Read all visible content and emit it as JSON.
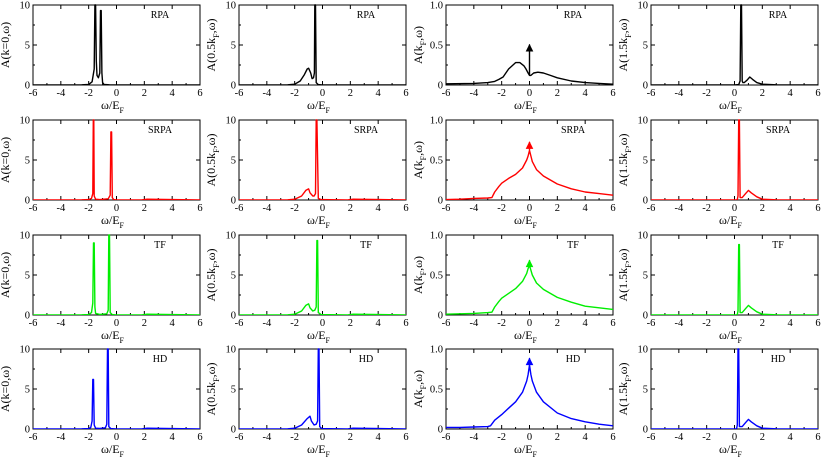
{
  "colors": {
    "RPA": "#000000",
    "SRPA": "#ff0000",
    "TF": "#00ee00",
    "HD": "#0000ff"
  },
  "chart_data": {
    "type": "line",
    "layout": "4x4 grid of panels (rows = methods, columns = momenta)",
    "x_axis": {
      "label": {
        "main": "ω/E",
        "sub": "F"
      },
      "ticks": [
        "-6",
        "-4",
        "-2",
        "0",
        "2",
        "4",
        "6"
      ],
      "xlim": [
        -6,
        6
      ]
    },
    "rows": [
      {
        "method": "RPA",
        "color": "#000000"
      },
      {
        "method": "SRPA",
        "color": "#ff0000"
      },
      {
        "method": "TF",
        "color": "#00ee00"
      },
      {
        "method": "HD",
        "color": "#0000ff"
      }
    ],
    "columns": [
      {
        "ylabel": {
          "pre": "A(k=0,ω)",
          "sub": "",
          "post": ""
        },
        "ylim": [
          0,
          10
        ],
        "yticks": [
          "0",
          "5",
          "10"
        ]
      },
      {
        "ylabel": {
          "pre": "A(0.5k",
          "sub": "F",
          "post": ",ω)"
        },
        "ylim": [
          0,
          10
        ],
        "yticks": [
          "0",
          "5",
          "10"
        ]
      },
      {
        "ylabel": {
          "pre": "A(k",
          "sub": "F",
          "post": ",ω)"
        },
        "ylim": [
          0,
          1.0
        ],
        "yticks": [
          "0",
          "0.5",
          "1.0"
        ]
      },
      {
        "ylabel": {
          "pre": "A(1.5k",
          "sub": "F",
          "post": ",ω)"
        },
        "ylim": [
          0,
          10
        ],
        "yticks": [
          "0",
          "5",
          "10"
        ]
      }
    ],
    "panels": [
      {
        "row": "RPA",
        "col": 0,
        "x": [
          -6,
          -2.5,
          -2.0,
          -1.75,
          -1.6,
          -1.55,
          -1.5,
          -1.45,
          -1.4,
          -1.3,
          -1.2,
          -1.15,
          -1.1,
          -1.05,
          -1.0,
          -0.9,
          -0.5,
          0,
          6
        ],
        "y": [
          0,
          0.02,
          0.08,
          0.4,
          2.0,
          10,
          10,
          3,
          1.2,
          0.9,
          1.5,
          9.3,
          9.3,
          1.5,
          0.3,
          0.08,
          0.02,
          0,
          0
        ]
      },
      {
        "row": "RPA",
        "col": 1,
        "x": [
          -6,
          -2.5,
          -2.0,
          -1.6,
          -1.3,
          -1.1,
          -1.0,
          -0.85,
          -0.75,
          -0.65,
          -0.58,
          -0.55,
          -0.5,
          -0.45,
          -0.3,
          0,
          2,
          6
        ],
        "y": [
          0,
          0.02,
          0.1,
          0.5,
          1.3,
          2.0,
          2.1,
          1.5,
          0.8,
          0.9,
          1.5,
          10,
          10,
          0.3,
          0.05,
          0,
          0,
          0
        ]
      },
      {
        "row": "RPA",
        "col": 2,
        "x": [
          -6,
          -4,
          -3,
          -2.5,
          -2.2,
          -1.9,
          -1.5,
          -1.0,
          -0.7,
          -0.4,
          -0.25,
          -0.1,
          0,
          0,
          0,
          0.1,
          0.3,
          0.6,
          1.0,
          1.5,
          2,
          3,
          4,
          5,
          6
        ],
        "y": [
          0.015,
          0.02,
          0.03,
          0.045,
          0.07,
          0.1,
          0.2,
          0.28,
          0.28,
          0.24,
          0.2,
          0.15,
          0.12,
          0.5,
          0.12,
          0.12,
          0.15,
          0.16,
          0.15,
          0.12,
          0.09,
          0.05,
          0.03,
          0.02,
          0.01
        ],
        "arrow": {
          "x": 0,
          "y": 0.5
        }
      },
      {
        "row": "RPA",
        "col": 3,
        "x": [
          -6,
          0,
          0.3,
          0.4,
          0.45,
          0.5,
          0.55,
          0.6,
          0.7,
          0.9,
          1.1,
          1.3,
          1.6,
          2.0,
          3,
          6
        ],
        "y": [
          0,
          0,
          0.05,
          0.5,
          10,
          10,
          0.5,
          0.3,
          0.3,
          0.6,
          1.0,
          0.7,
          0.3,
          0.1,
          0.02,
          0
        ]
      },
      {
        "row": "SRPA",
        "col": 0,
        "x": [
          -6,
          -2.5,
          -2.0,
          -1.8,
          -1.7,
          -1.67,
          -1.63,
          -1.6,
          -1.5,
          -1.2,
          -0.6,
          -0.45,
          -0.4,
          -0.35,
          -0.3,
          -0.2,
          0,
          1.8,
          2.2,
          6
        ],
        "y": [
          0,
          0.02,
          0.05,
          0.2,
          0.8,
          10,
          10,
          0.5,
          0.1,
          0.05,
          0.15,
          0.6,
          8.5,
          8.5,
          0.3,
          0.05,
          0,
          0,
          0.1,
          0
        ]
      },
      {
        "row": "SRPA",
        "col": 1,
        "x": [
          -6,
          -2.5,
          -2.0,
          -1.5,
          -1.2,
          -1.0,
          -0.9,
          -0.7,
          -0.6,
          -0.5,
          -0.45,
          -0.4,
          -0.3,
          -0.1,
          1.8,
          2.2,
          6
        ],
        "y": [
          0,
          0.02,
          0.1,
          0.5,
          1.2,
          1.4,
          0.9,
          0.5,
          0.5,
          0.8,
          10,
          10,
          0.2,
          0.05,
          0,
          0.1,
          0
        ],
        "clip": true
      },
      {
        "row": "SRPA",
        "col": 2,
        "x": [
          -6,
          -5,
          -4,
          -3,
          -2.7,
          -2.5,
          -2.2,
          -2.0,
          -1.5,
          -1.0,
          -0.5,
          -0.2,
          -0.1,
          0,
          0,
          0,
          0.1,
          0.2,
          0.5,
          1.0,
          2,
          3,
          4,
          5,
          6
        ],
        "y": [
          0.005,
          0.01,
          0.02,
          0.025,
          0.03,
          0.1,
          0.17,
          0.21,
          0.27,
          0.32,
          0.4,
          0.5,
          0.55,
          0.62,
          0.72,
          0.62,
          0.55,
          0.48,
          0.38,
          0.3,
          0.2,
          0.14,
          0.1,
          0.08,
          0.06
        ],
        "arrow": {
          "x": 0,
          "y": 0.72
        }
      },
      {
        "row": "SRPA",
        "col": 3,
        "x": [
          -6,
          0.1,
          0.2,
          0.25,
          0.3,
          0.35,
          0.4,
          0.55,
          0.8,
          1.0,
          1.2,
          1.6,
          2.0,
          3,
          6
        ],
        "y": [
          0,
          0,
          0.05,
          0.5,
          10,
          10,
          0.3,
          0.3,
          0.8,
          1.2,
          0.9,
          0.4,
          0.1,
          0.03,
          0
        ],
        "clip": true
      },
      {
        "row": "TF",
        "col": 0,
        "x": [
          -6,
          -2.5,
          -2.0,
          -1.8,
          -1.7,
          -1.65,
          -1.6,
          -1.55,
          -1.5,
          -1.2,
          -0.7,
          -0.6,
          -0.55,
          -0.5,
          -0.45,
          -0.3,
          0,
          1.8,
          2.2,
          6
        ],
        "y": [
          0,
          0.02,
          0.05,
          0.3,
          1.5,
          9.0,
          9.0,
          1.0,
          0.2,
          0.08,
          0.15,
          0.6,
          10,
          10,
          0.3,
          0.05,
          0,
          0,
          0.1,
          0
        ]
      },
      {
        "row": "TF",
        "col": 1,
        "x": [
          -6,
          -2.5,
          -2.0,
          -1.5,
          -1.2,
          -1.0,
          -0.9,
          -0.7,
          -0.55,
          -0.45,
          -0.4,
          -0.35,
          -0.3,
          -0.1,
          1.8,
          2.2,
          6
        ],
        "y": [
          0,
          0.02,
          0.1,
          0.5,
          1.2,
          1.4,
          0.9,
          0.5,
          0.6,
          1.0,
          9.3,
          9.3,
          0.3,
          0.05,
          0,
          0.1,
          0
        ]
      },
      {
        "row": "TF",
        "col": 2,
        "x": [
          -6,
          -5,
          -4,
          -3,
          -2.7,
          -2.5,
          -2.2,
          -2.0,
          -1.5,
          -1.0,
          -0.5,
          -0.2,
          -0.1,
          0,
          0,
          0,
          0.1,
          0.2,
          0.5,
          1.0,
          2,
          3,
          4,
          5,
          6
        ],
        "y": [
          0.01,
          0.015,
          0.02,
          0.03,
          0.035,
          0.1,
          0.17,
          0.21,
          0.27,
          0.33,
          0.42,
          0.52,
          0.58,
          0.62,
          0.68,
          0.62,
          0.56,
          0.5,
          0.4,
          0.32,
          0.22,
          0.16,
          0.11,
          0.09,
          0.07
        ],
        "arrow": {
          "x": 0,
          "y": 0.68
        }
      },
      {
        "row": "TF",
        "col": 3,
        "x": [
          -6,
          0.1,
          0.2,
          0.25,
          0.3,
          0.35,
          0.4,
          0.55,
          0.8,
          1.0,
          1.2,
          1.6,
          2.0,
          3,
          6
        ],
        "y": [
          0,
          0,
          0.05,
          0.5,
          8.8,
          8.8,
          0.3,
          0.3,
          0.8,
          1.2,
          0.9,
          0.4,
          0.1,
          0.03,
          0
        ]
      },
      {
        "row": "HD",
        "col": 0,
        "x": [
          -6,
          -2.5,
          -2.0,
          -1.85,
          -1.75,
          -1.7,
          -1.65,
          -1.6,
          -1.5,
          -1.2,
          -0.8,
          -0.7,
          -0.65,
          -0.6,
          -0.55,
          -0.4,
          0,
          1.8,
          2.2,
          6
        ],
        "y": [
          0,
          0.02,
          0.05,
          0.2,
          1.0,
          6.2,
          6.2,
          0.5,
          0.1,
          0.08,
          0.15,
          0.6,
          10,
          10,
          0.3,
          0.05,
          0,
          0,
          0.1,
          0
        ]
      },
      {
        "row": "HD",
        "col": 1,
        "x": [
          -6,
          -2.5,
          -2.0,
          -1.5,
          -1.1,
          -0.9,
          -0.8,
          -0.6,
          -0.45,
          -0.35,
          -0.3,
          -0.25,
          -0.2,
          -0.05,
          1.8,
          2.2,
          6
        ],
        "y": [
          0,
          0.02,
          0.1,
          0.5,
          1.3,
          1.6,
          1.0,
          0.5,
          0.6,
          1.0,
          10,
          10,
          0.3,
          0.05,
          0,
          0.1,
          0
        ]
      },
      {
        "row": "HD",
        "col": 2,
        "x": [
          -6,
          -5,
          -4,
          -3,
          -2.8,
          -2.5,
          -2.0,
          -1.5,
          -1.0,
          -0.5,
          -0.2,
          -0.1,
          0,
          0,
          0,
          0.1,
          0.2,
          0.5,
          1.0,
          2,
          3,
          4,
          5,
          6
        ],
        "y": [
          0.02,
          0.02,
          0.025,
          0.03,
          0.04,
          0.11,
          0.18,
          0.26,
          0.34,
          0.46,
          0.6,
          0.68,
          0.8,
          0.88,
          0.8,
          0.68,
          0.6,
          0.46,
          0.34,
          0.2,
          0.13,
          0.09,
          0.06,
          0.04
        ],
        "arrow": {
          "x": 0,
          "y": 0.88
        }
      },
      {
        "row": "HD",
        "col": 3,
        "x": [
          -6,
          0.05,
          0.15,
          0.2,
          0.25,
          0.3,
          0.35,
          0.55,
          0.8,
          1.0,
          1.2,
          1.6,
          2.0,
          3,
          6
        ],
        "y": [
          0,
          0,
          0.05,
          0.5,
          10,
          10,
          0.3,
          0.3,
          0.8,
          1.2,
          0.9,
          0.4,
          0.1,
          0.03,
          0
        ]
      }
    ]
  }
}
